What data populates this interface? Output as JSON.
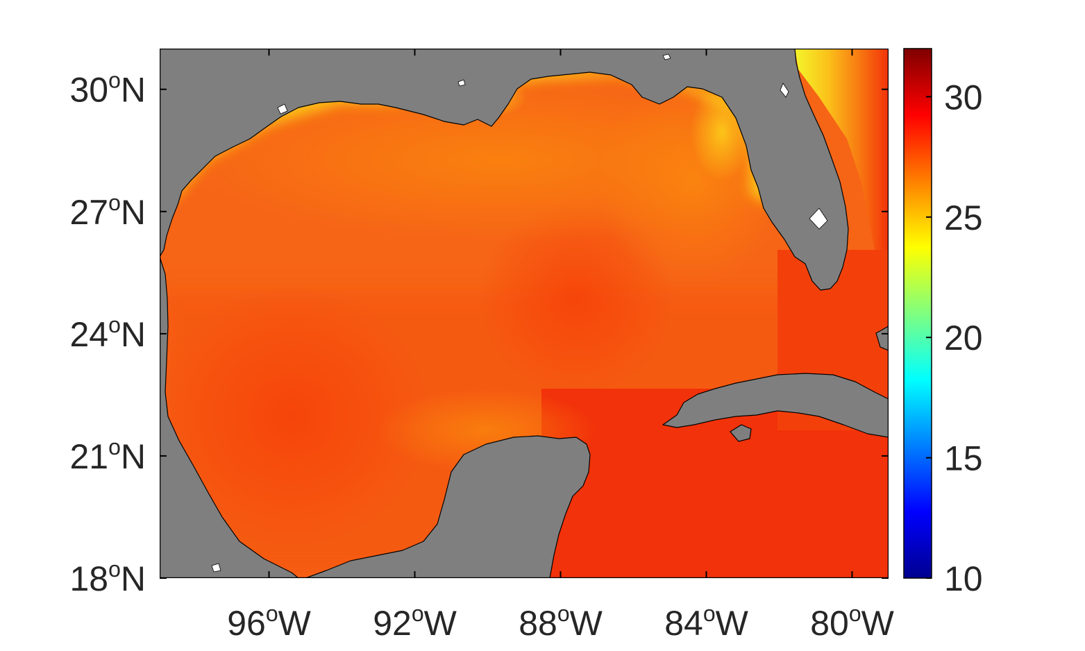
{
  "map": {
    "region": "Gulf of Mexico",
    "colors": {
      "land": "#7f7f7f",
      "no_data": "#ffffff",
      "frame": "#000000",
      "text": "#262626"
    },
    "lat_range_deg_n": [
      18,
      31
    ],
    "lon_range_deg_w": [
      99,
      79
    ],
    "lat_ticks": [
      {
        "value": 30,
        "num": "30",
        "sup": "o",
        "hemi": "N"
      },
      {
        "value": 27,
        "num": "27",
        "sup": "o",
        "hemi": "N"
      },
      {
        "value": 24,
        "num": "24",
        "sup": "o",
        "hemi": "N"
      },
      {
        "value": 21,
        "num": "21",
        "sup": "o",
        "hemi": "N"
      },
      {
        "value": 18,
        "num": "18",
        "sup": "o",
        "hemi": "N"
      }
    ],
    "lon_ticks": [
      {
        "value": 96,
        "num": "96",
        "sup": "o",
        "hemi": "W"
      },
      {
        "value": 92,
        "num": "92",
        "sup": "o",
        "hemi": "W"
      },
      {
        "value": 88,
        "num": "88",
        "sup": "o",
        "hemi": "W"
      },
      {
        "value": 84,
        "num": "84",
        "sup": "o",
        "hemi": "W"
      },
      {
        "value": 80,
        "num": "80",
        "sup": "o",
        "hemi": "W"
      }
    ]
  },
  "colorbar": {
    "colormap": "jet",
    "range": [
      10,
      32
    ],
    "ticks": [
      {
        "value": 30,
        "label": "30"
      },
      {
        "value": 25,
        "label": "25"
      },
      {
        "value": 20,
        "label": "20"
      },
      {
        "value": 15,
        "label": "15"
      },
      {
        "value": 10,
        "label": "10"
      }
    ]
  }
}
